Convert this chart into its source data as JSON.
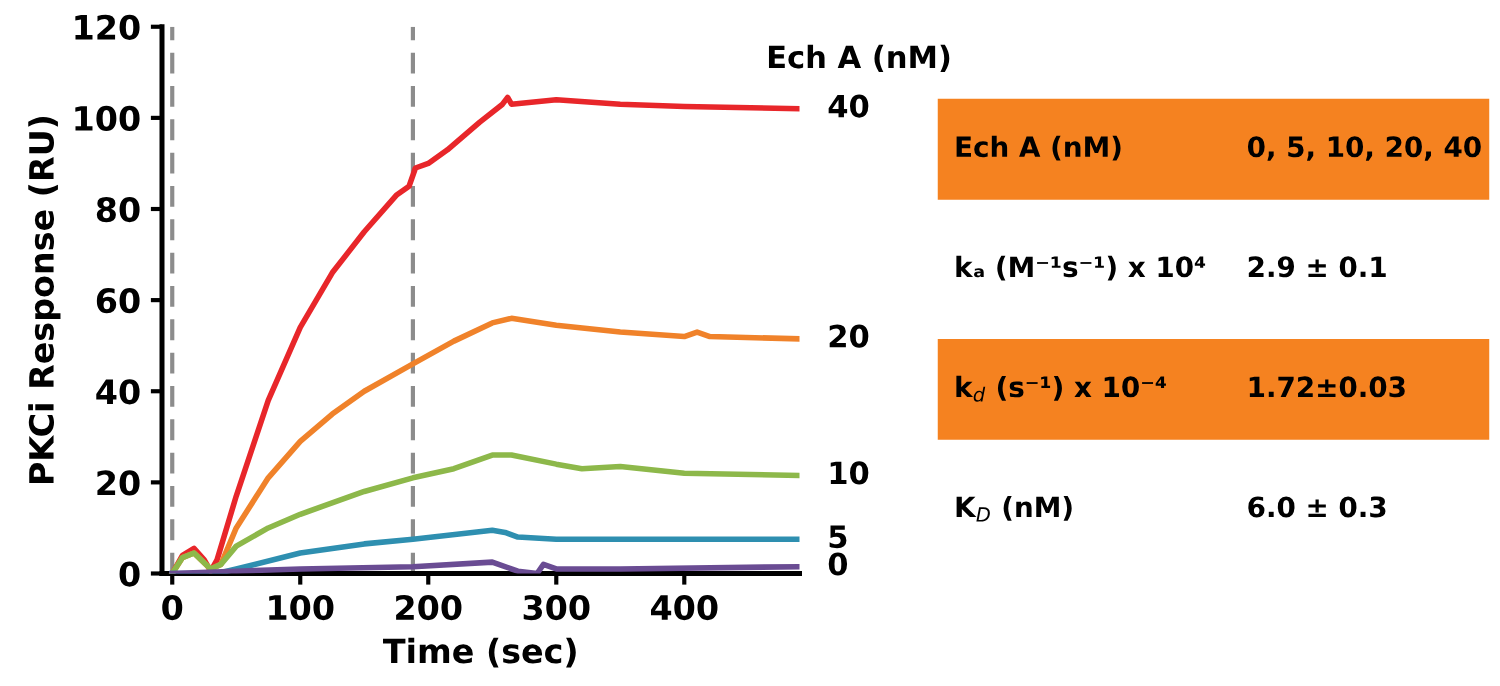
{
  "chart_data": [
    {
      "type": "line",
      "xlabel": "Time (sec)",
      "ylabel": "PKCi Response (RU)",
      "legend_title": "Ech A (nM)",
      "xlim": [
        -8,
        490
      ],
      "ylim": [
        0,
        120
      ],
      "xticks": [
        0,
        100,
        200,
        300,
        400
      ],
      "yticks": [
        0,
        20,
        40,
        60,
        80,
        100,
        120
      ],
      "grid": false,
      "legend": false,
      "ref_lines": [
        {
          "axis": "x",
          "value": 0,
          "color": "#8c8c8c",
          "line_style": "dashed"
        },
        {
          "axis": "x",
          "value": 188,
          "color": "#8c8c8c",
          "line_style": "dashed"
        }
      ],
      "series": [
        {
          "name": "40",
          "color": "#e8262a",
          "x": [
            0,
            8,
            17,
            25,
            30,
            35,
            50,
            75,
            100,
            125,
            150,
            175,
            185,
            190,
            200,
            215,
            240,
            258,
            262,
            265,
            300,
            350,
            400,
            490
          ],
          "values": [
            0,
            4,
            5.5,
            3,
            0.5,
            3,
            17,
            38,
            54,
            66,
            75,
            83,
            85,
            89,
            90,
            93,
            99,
            103,
            104.5,
            103,
            104,
            103,
            102.5,
            102
          ]
        },
        {
          "name": "20",
          "color": "#f0822a",
          "x": [
            0,
            8,
            17,
            30,
            38,
            50,
            75,
            100,
            125,
            150,
            188,
            220,
            250,
            265,
            300,
            350,
            400,
            410,
            420,
            490
          ],
          "values": [
            0,
            3.5,
            4.5,
            1,
            2,
            10,
            21,
            29,
            35,
            40,
            46,
            51,
            55,
            56,
            54.5,
            53,
            52,
            53,
            52,
            51.5
          ]
        },
        {
          "name": "10",
          "color": "#8db84a",
          "x": [
            0,
            8,
            17,
            30,
            38,
            50,
            75,
            100,
            150,
            188,
            220,
            250,
            265,
            300,
            320,
            350,
            400,
            490
          ],
          "values": [
            0,
            3.5,
            4.5,
            1,
            2,
            6,
            10,
            13,
            18,
            21,
            23,
            26,
            26,
            24,
            23,
            23.5,
            22,
            21.5
          ]
        },
        {
          "name": "5",
          "color": "#2e8fb0",
          "x": [
            0,
            35,
            50,
            100,
            150,
            188,
            250,
            260,
            270,
            300,
            490
          ],
          "values": [
            0,
            0,
            1,
            4.5,
            6.5,
            7.5,
            9.5,
            9,
            8,
            7.5,
            7.5
          ]
        },
        {
          "name": "0",
          "color": "#6a4c93",
          "x": [
            0,
            50,
            100,
            188,
            250,
            255,
            270,
            285,
            290,
            300,
            350,
            490
          ],
          "values": [
            0,
            0.5,
            1,
            1.5,
            2.5,
            2,
            0.5,
            0,
            2,
            1,
            1,
            1.5
          ]
        }
      ]
    },
    {
      "type": "other",
      "annotations": [
        "Ech A (nM)",
        "0, 5, 10, 20, 40",
        "kₐ (M⁻¹s⁻¹) x 10⁴",
        "2.9 ± 0.1",
        "k$_{d}$ (s⁻¹) x 10⁻⁴",
        "1.72±0.03",
        "K$_{D}$ (nM)",
        "6.0 ± 0.3"
      ]
    }
  ]
}
